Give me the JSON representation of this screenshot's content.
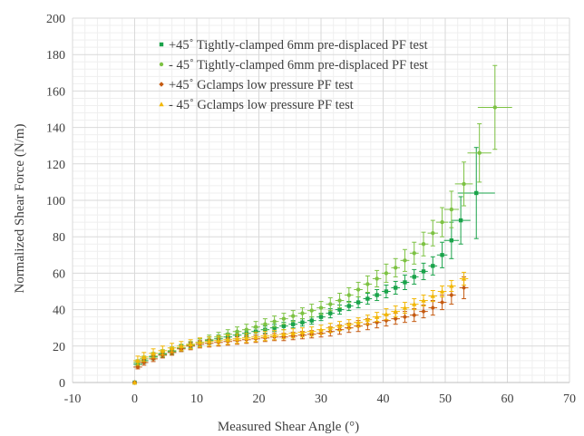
{
  "chart_data": {
    "type": "scatter",
    "title": "",
    "xlabel": "Measured Shear Angle (°)",
    "ylabel": "Normalized Shear Force (N/m)",
    "xlim": [
      -10,
      70
    ],
    "ylim": [
      0,
      200
    ],
    "x_ticks": [
      "-10",
      "0",
      "10",
      "20",
      "30",
      "40",
      "50",
      "60",
      "70"
    ],
    "y_ticks": [
      "0",
      "20",
      "40",
      "60",
      "80",
      "100",
      "120",
      "140",
      "160",
      "180",
      "200"
    ],
    "grid": "major and minor",
    "legend_position": "top-left",
    "series": [
      {
        "name": "+45˚ Tightly-clamped 6mm pre-displaced PF test",
        "color": "#1aa34a",
        "marker": "square",
        "points": [
          [
            0,
            0
          ],
          [
            0.5,
            10
          ],
          [
            1.5,
            12
          ],
          [
            3,
            14
          ],
          [
            4.5,
            15.5
          ],
          [
            6,
            17
          ],
          [
            7.5,
            19
          ],
          [
            9,
            20.5
          ],
          [
            10.5,
            22
          ],
          [
            12,
            23
          ],
          [
            13.5,
            24
          ],
          [
            15,
            25
          ],
          [
            16.5,
            26
          ],
          [
            18,
            27
          ],
          [
            19.5,
            28
          ],
          [
            21,
            29
          ],
          [
            22.5,
            30
          ],
          [
            24,
            31
          ],
          [
            25.5,
            32
          ],
          [
            27,
            33
          ],
          [
            28.5,
            34
          ],
          [
            30,
            36
          ],
          [
            31.5,
            38
          ],
          [
            33,
            40
          ],
          [
            34.5,
            42
          ],
          [
            36,
            44
          ],
          [
            37.5,
            46
          ],
          [
            39,
            48
          ],
          [
            40.5,
            50
          ],
          [
            42,
            52
          ],
          [
            43.5,
            55
          ],
          [
            45,
            58
          ],
          [
            46.5,
            61
          ],
          [
            48,
            64
          ],
          [
            49.5,
            70
          ],
          [
            51,
            78
          ],
          [
            52.5,
            89
          ],
          [
            55,
            104
          ]
        ],
        "errors": [
          0,
          1.5,
          1.5,
          1.5,
          1.5,
          1.5,
          1.5,
          1.5,
          2,
          2,
          2,
          2,
          2,
          2,
          2,
          2,
          2,
          2,
          2,
          2,
          2,
          2,
          2.5,
          2.5,
          2.5,
          3,
          3,
          3,
          3.5,
          3.5,
          4,
          4,
          4.5,
          5,
          7,
          10,
          13,
          25
        ]
      },
      {
        "name": "- 45˚ Tightly-clamped 6mm pre-displaced PF test",
        "color": "#7dc243",
        "marker": "circle",
        "points": [
          [
            0,
            0
          ],
          [
            0.5,
            11
          ],
          [
            1.5,
            13
          ],
          [
            3,
            14.5
          ],
          [
            4.5,
            16
          ],
          [
            6,
            17.5
          ],
          [
            7.5,
            19
          ],
          [
            9,
            20.5
          ],
          [
            10.5,
            22
          ],
          [
            12,
            23.5
          ],
          [
            13.5,
            25
          ],
          [
            15,
            26.5
          ],
          [
            16.5,
            28
          ],
          [
            18,
            29
          ],
          [
            19.5,
            30.5
          ],
          [
            21,
            32
          ],
          [
            22.5,
            33.5
          ],
          [
            24,
            35
          ],
          [
            25.5,
            36.5
          ],
          [
            27,
            38
          ],
          [
            28.5,
            39.5
          ],
          [
            30,
            41
          ],
          [
            31.5,
            43
          ],
          [
            33,
            45
          ],
          [
            34.5,
            48
          ],
          [
            36,
            51
          ],
          [
            37.5,
            54
          ],
          [
            39,
            57
          ],
          [
            40.5,
            60
          ],
          [
            42,
            63
          ],
          [
            43.5,
            67
          ],
          [
            45,
            71
          ],
          [
            46.5,
            76
          ],
          [
            48,
            82
          ],
          [
            49.5,
            88
          ],
          [
            51,
            95
          ],
          [
            53,
            109
          ],
          [
            55.5,
            126
          ],
          [
            58,
            151
          ]
        ],
        "errors": [
          0,
          1.5,
          1.5,
          2,
          2,
          2,
          2,
          2,
          2,
          2.5,
          2.5,
          2.5,
          2.5,
          3,
          3,
          3,
          3,
          3,
          3,
          3,
          3.5,
          3.5,
          3.5,
          4,
          4,
          4,
          4.5,
          4.5,
          5,
          5,
          6,
          6,
          6.5,
          7,
          8,
          10,
          12,
          16,
          23
        ]
      },
      {
        "name": "+45˚ Gclamps low pressure PF test",
        "color": "#c55a11",
        "marker": "diamond",
        "points": [
          [
            0,
            0
          ],
          [
            0.5,
            8.5
          ],
          [
            1.5,
            11
          ],
          [
            3,
            13
          ],
          [
            4.5,
            15
          ],
          [
            6,
            16.5
          ],
          [
            7.5,
            18.5
          ],
          [
            9,
            20
          ],
          [
            10.5,
            21
          ],
          [
            12,
            21.5
          ],
          [
            13.5,
            22
          ],
          [
            15,
            22.5
          ],
          [
            16.5,
            23
          ],
          [
            18,
            23.5
          ],
          [
            19.5,
            24
          ],
          [
            21,
            24.5
          ],
          [
            22.5,
            25
          ],
          [
            24,
            25
          ],
          [
            25.5,
            25.5
          ],
          [
            27,
            26
          ],
          [
            28.5,
            26.5
          ],
          [
            30,
            27
          ],
          [
            31.5,
            28
          ],
          [
            33,
            29
          ],
          [
            34.5,
            30
          ],
          [
            36,
            31
          ],
          [
            37.5,
            32
          ],
          [
            39,
            33
          ],
          [
            40.5,
            34
          ],
          [
            42,
            35
          ],
          [
            43.5,
            36
          ],
          [
            45,
            37
          ],
          [
            46.5,
            39
          ],
          [
            48,
            41
          ],
          [
            49.5,
            44
          ],
          [
            51,
            48
          ],
          [
            53,
            52
          ]
        ],
        "errors": [
          0,
          1,
          1.5,
          1.5,
          1.5,
          1.5,
          1.5,
          2,
          2,
          2,
          2,
          2,
          2,
          2,
          2,
          2,
          2,
          2,
          2,
          2,
          2,
          2,
          2.5,
          2.5,
          2.5,
          3,
          3,
          3,
          3,
          3,
          3,
          3.5,
          3.5,
          4,
          4,
          5,
          6
        ]
      },
      {
        "name": "- 45˚ Gclamps low pressure PF test",
        "color": "#f2b705",
        "marker": "triangle",
        "points": [
          [
            0,
            0
          ],
          [
            0.5,
            12
          ],
          [
            1.5,
            14
          ],
          [
            3,
            16
          ],
          [
            4.5,
            17.5
          ],
          [
            6,
            19
          ],
          [
            7.5,
            20
          ],
          [
            9,
            21
          ],
          [
            10.5,
            22
          ],
          [
            12,
            22.5
          ],
          [
            13.5,
            23
          ],
          [
            15,
            23.5
          ],
          [
            16.5,
            24
          ],
          [
            18,
            24.5
          ],
          [
            19.5,
            25
          ],
          [
            21,
            25.5
          ],
          [
            22.5,
            26
          ],
          [
            24,
            26.5
          ],
          [
            25.5,
            27
          ],
          [
            27,
            27.5
          ],
          [
            28.5,
            28
          ],
          [
            30,
            29
          ],
          [
            31.5,
            30
          ],
          [
            33,
            31
          ],
          [
            34.5,
            32
          ],
          [
            36,
            33
          ],
          [
            37.5,
            34.5
          ],
          [
            39,
            36
          ],
          [
            40.5,
            37.5
          ],
          [
            42,
            39
          ],
          [
            43.5,
            41
          ],
          [
            45,
            43
          ],
          [
            46.5,
            45
          ],
          [
            48,
            47.5
          ],
          [
            49.5,
            50
          ],
          [
            51,
            53
          ],
          [
            53,
            57
          ]
        ],
        "errors": [
          0,
          2.5,
          2.5,
          2.5,
          2.5,
          2.5,
          2.5,
          2.5,
          2.5,
          2.5,
          2.5,
          2.5,
          2.5,
          2.5,
          2.5,
          2.5,
          2.5,
          2.5,
          2.5,
          2.5,
          2.5,
          2.5,
          2.5,
          2.5,
          2.5,
          2.5,
          2.5,
          2.5,
          3,
          3,
          3,
          3,
          3,
          3,
          3,
          3,
          3.5
        ]
      }
    ]
  }
}
